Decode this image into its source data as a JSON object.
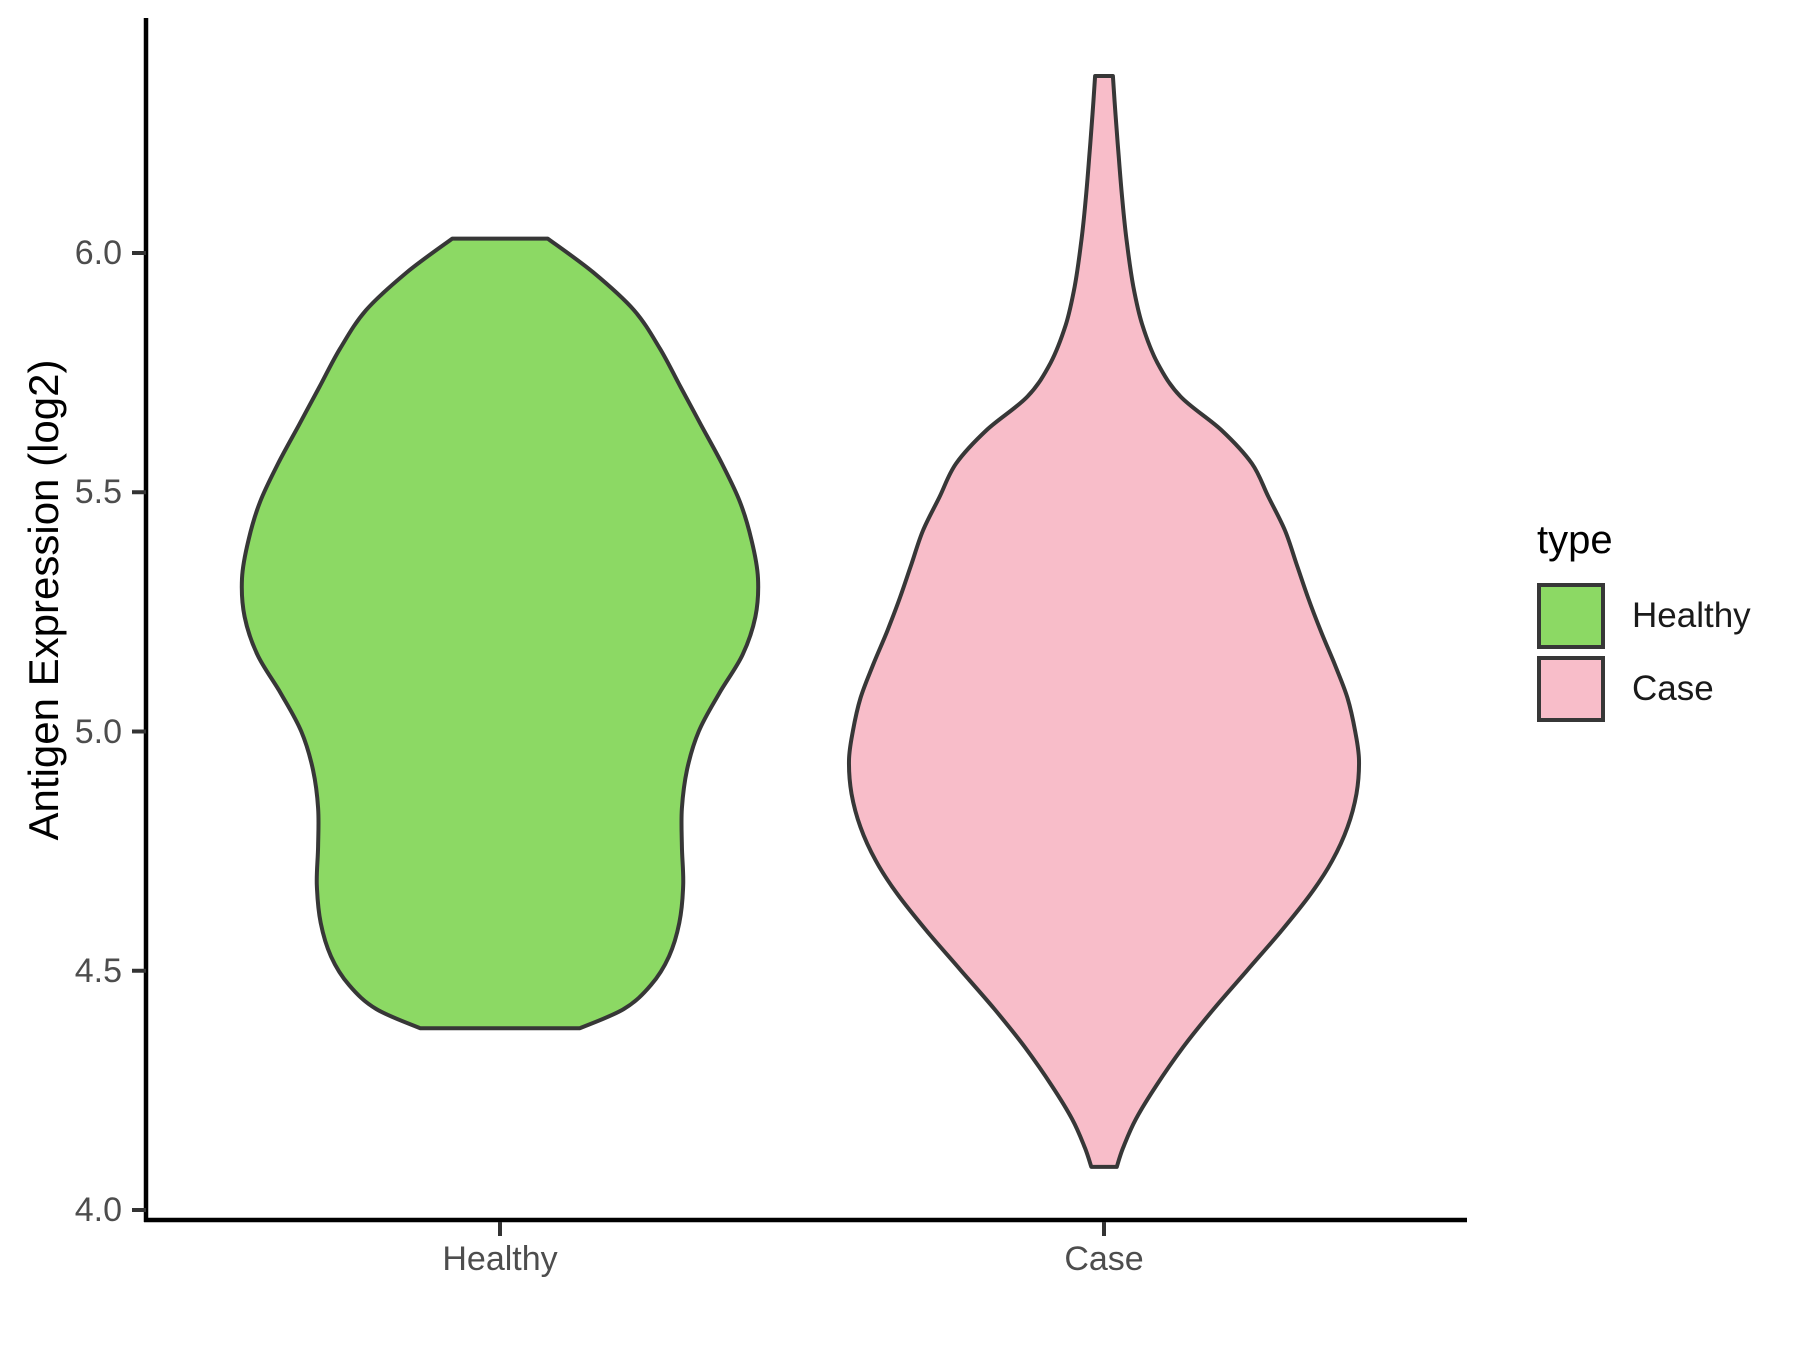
{
  "chart_data": {
    "type": "violin",
    "title": "",
    "xlabel": "",
    "ylabel": "Antigen Expression (log2)",
    "ylim": [
      4.0,
      6.5
    ],
    "yticks": [
      4.0,
      4.5,
      5.0,
      5.5,
      6.0
    ],
    "ytick_labels": [
      "4.0",
      "4.5",
      "5.0",
      "5.5",
      "6.0"
    ],
    "categories": [
      "Healthy",
      "Case"
    ],
    "grid": false,
    "background": "#FFFFFF",
    "legend": {
      "title": "type",
      "position": "right",
      "entries": [
        {
          "label": "Healthy",
          "color": "#8CD964"
        },
        {
          "label": "Case",
          "color": "#F8BDC9"
        }
      ]
    },
    "style": {
      "axis_line_color": "#000000",
      "tick_mark_color": "#333333",
      "tick_label_color": "#4D4D4D",
      "outline_color": "#373737",
      "title_color": "#000000"
    },
    "series": [
      {
        "name": "Healthy",
        "fill": "#8CD964",
        "outline": "#373737",
        "y_min": 4.38,
        "y_max": 6.03,
        "peak_y": 5.32,
        "flat_top": true,
        "flat_bottom": true,
        "profile": [
          [
            6.03,
            0.185
          ],
          [
            5.96,
            0.36
          ],
          [
            5.88,
            0.52
          ],
          [
            5.8,
            0.62
          ],
          [
            5.72,
            0.7
          ],
          [
            5.64,
            0.78
          ],
          [
            5.56,
            0.86
          ],
          [
            5.48,
            0.93
          ],
          [
            5.4,
            0.975
          ],
          [
            5.32,
            1.0
          ],
          [
            5.24,
            0.99
          ],
          [
            5.16,
            0.94
          ],
          [
            5.08,
            0.85
          ],
          [
            5.0,
            0.77
          ],
          [
            4.92,
            0.725
          ],
          [
            4.84,
            0.705
          ],
          [
            4.76,
            0.705
          ],
          [
            4.68,
            0.71
          ],
          [
            4.6,
            0.695
          ],
          [
            4.53,
            0.655
          ],
          [
            4.47,
            0.585
          ],
          [
            4.42,
            0.48
          ],
          [
            4.38,
            0.31
          ]
        ]
      },
      {
        "name": "Case",
        "fill": "#F8BDC9",
        "outline": "#373737",
        "y_min": 4.09,
        "y_max": 6.37,
        "peak_y": 4.97,
        "flat_top": true,
        "flat_bottom": true,
        "profile": [
          [
            6.37,
            0.035
          ],
          [
            6.29,
            0.045
          ],
          [
            6.2,
            0.058
          ],
          [
            6.11,
            0.072
          ],
          [
            6.02,
            0.09
          ],
          [
            5.93,
            0.115
          ],
          [
            5.85,
            0.15
          ],
          [
            5.77,
            0.21
          ],
          [
            5.7,
            0.3
          ],
          [
            5.63,
            0.46
          ],
          [
            5.56,
            0.58
          ],
          [
            5.49,
            0.645
          ],
          [
            5.42,
            0.71
          ],
          [
            5.35,
            0.755
          ],
          [
            5.28,
            0.8
          ],
          [
            5.21,
            0.85
          ],
          [
            5.14,
            0.905
          ],
          [
            5.07,
            0.955
          ],
          [
            5.0,
            0.985
          ],
          [
            4.94,
            1.0
          ],
          [
            4.87,
            0.99
          ],
          [
            4.8,
            0.955
          ],
          [
            4.73,
            0.895
          ],
          [
            4.66,
            0.81
          ],
          [
            4.58,
            0.69
          ],
          [
            4.5,
            0.56
          ],
          [
            4.42,
            0.43
          ],
          [
            4.34,
            0.31
          ],
          [
            4.26,
            0.205
          ],
          [
            4.19,
            0.125
          ],
          [
            4.13,
            0.075
          ],
          [
            4.09,
            0.05
          ]
        ]
      }
    ]
  }
}
